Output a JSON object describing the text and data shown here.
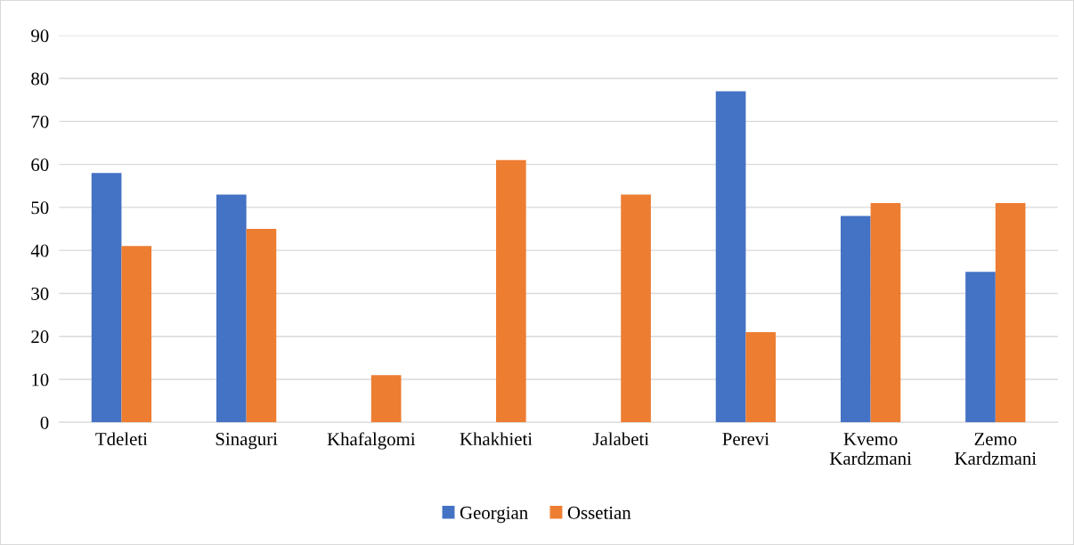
{
  "chart_data": {
    "type": "bar",
    "categories": [
      "Tdeleti",
      "Sinaguri",
      "Khafalgomi",
      "Khakhieti",
      "Jalabeti",
      "Perevi",
      "Kvemo\nKardzmani",
      "Zemo\nKardzmani"
    ],
    "series": [
      {
        "name": "Georgian",
        "color": "#4472c4",
        "values": [
          58,
          53,
          null,
          null,
          null,
          77,
          48,
          35
        ]
      },
      {
        "name": "Ossetian",
        "color": "#ed7d31",
        "values": [
          41,
          45,
          11,
          61,
          53,
          21,
          51,
          51
        ]
      }
    ],
    "ylim": [
      0,
      90
    ],
    "yticks": [
      0,
      10,
      20,
      30,
      40,
      50,
      60,
      70,
      80,
      90
    ],
    "grid": "y",
    "legend": "bottom"
  }
}
